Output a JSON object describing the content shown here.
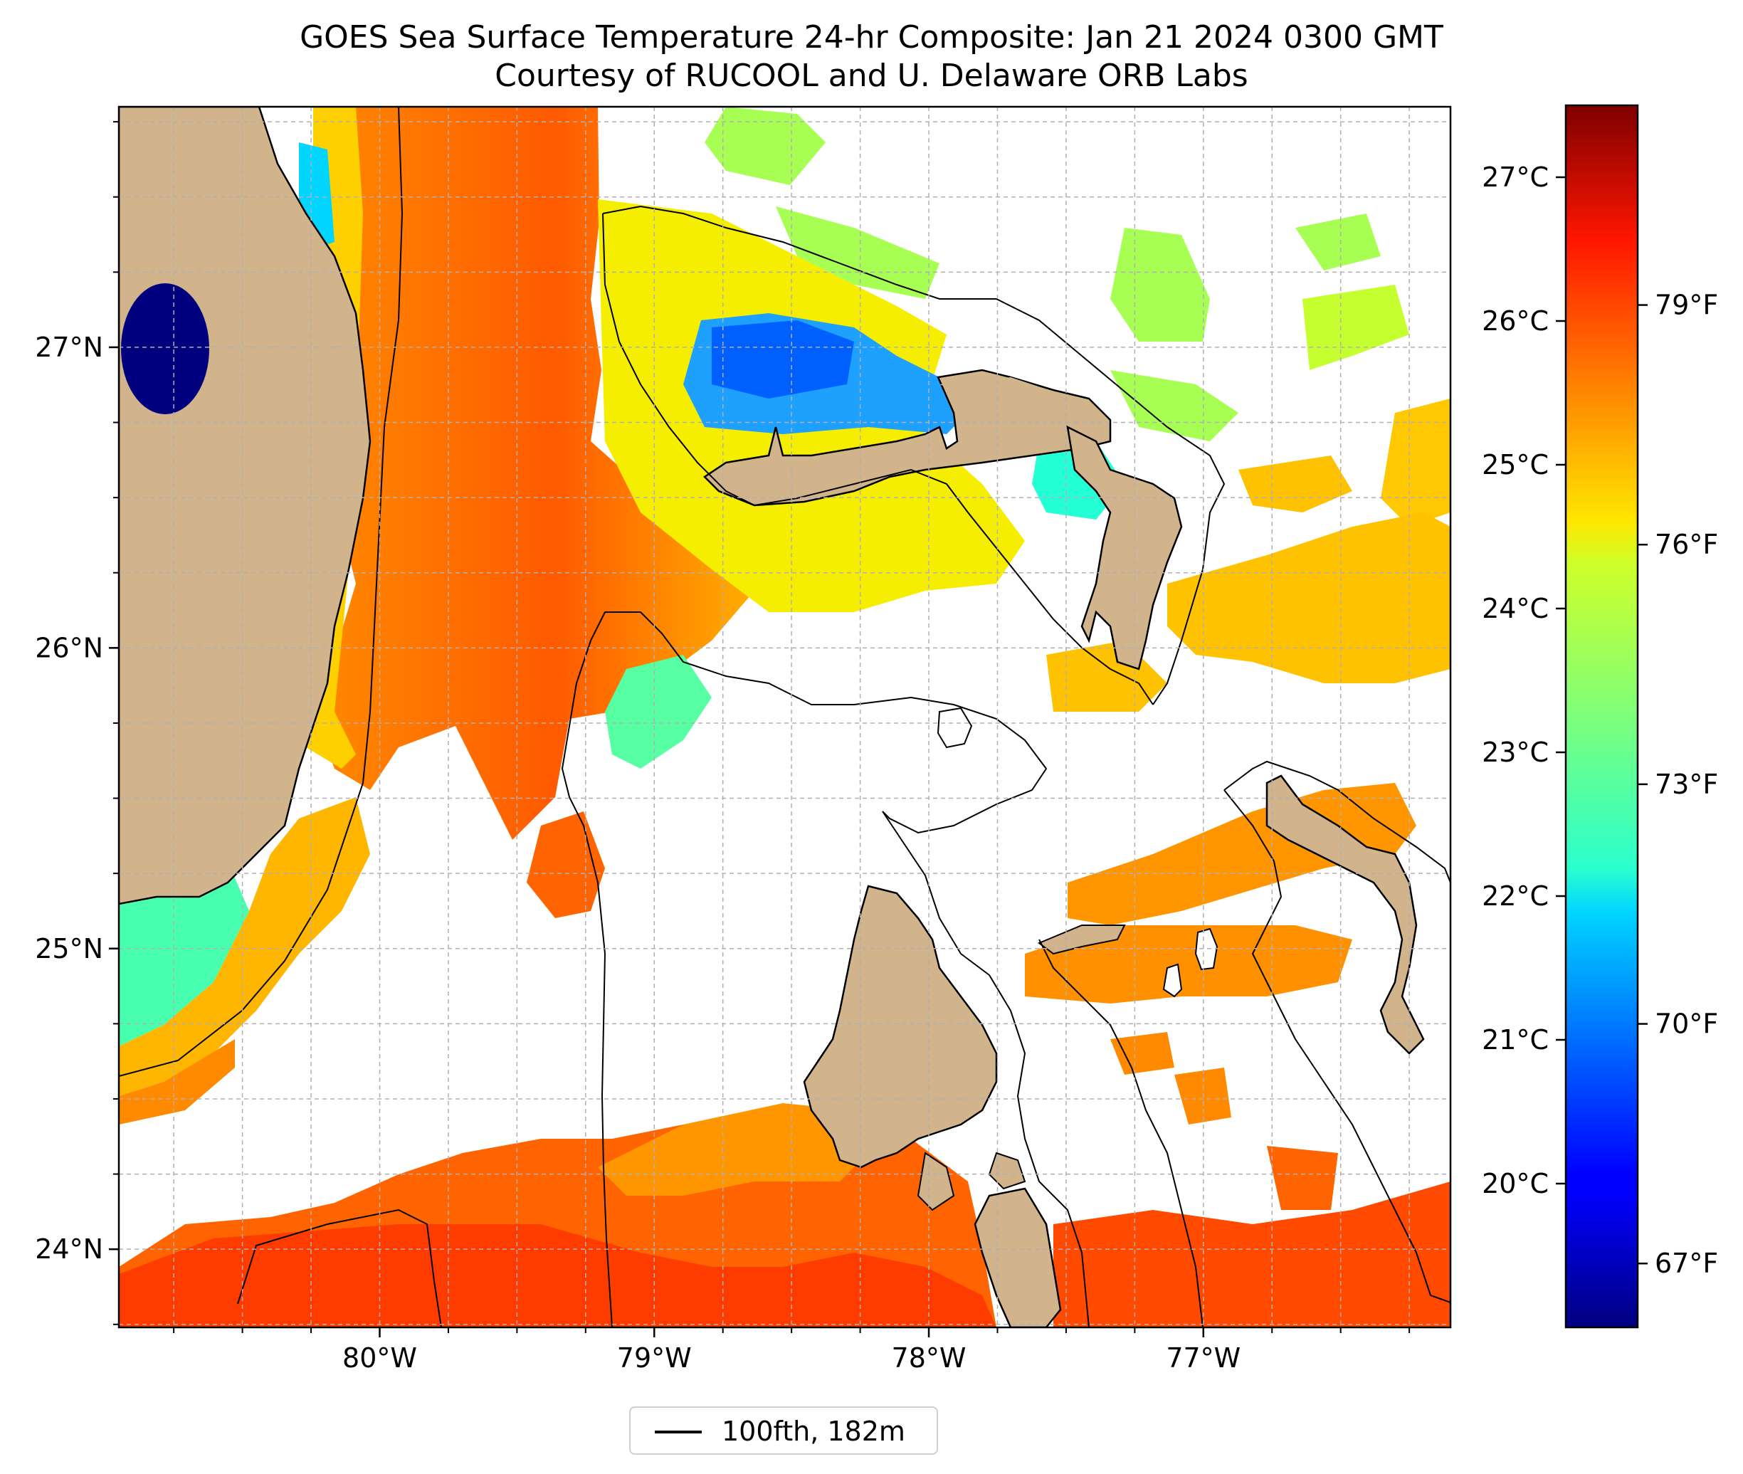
{
  "title": {
    "line1": "GOES Sea Surface Temperature 24-hr Composite: Jan 21 2024 0300 GMT",
    "line2": "Courtesy of RUCOOL and U. Delaware ORB Labs"
  },
  "map": {
    "extent": {
      "lon_min": -80.95,
      "lon_max": -76.1,
      "lat_min": 23.74,
      "lat_max": 27.8
    },
    "lon_ticks": [
      {
        "value": -80,
        "label": "80°W"
      },
      {
        "value": -79,
        "label": "79°W"
      },
      {
        "value": -78,
        "label": "78°W"
      },
      {
        "value": -77,
        "label": "77°W"
      }
    ],
    "lat_ticks": [
      {
        "value": 24,
        "label": "24°N"
      },
      {
        "value": 25,
        "label": "25°N"
      },
      {
        "value": 26,
        "label": "26°N"
      },
      {
        "value": 27,
        "label": "27°N"
      }
    ],
    "gridlines": "on, dashed, every 0.25°",
    "land_color": "#d2b48c",
    "missing_data_color": "#ffffff",
    "colormap": "jet"
  },
  "colorbar": {
    "min_f": 66.2,
    "max_f": 81.5,
    "celsius_ticks": [
      {
        "value": 20,
        "label": "20°C"
      },
      {
        "value": 21,
        "label": "21°C"
      },
      {
        "value": 22,
        "label": "22°C"
      },
      {
        "value": 23,
        "label": "23°C"
      },
      {
        "value": 24,
        "label": "24°C"
      },
      {
        "value": 25,
        "label": "25°C"
      },
      {
        "value": 26,
        "label": "26°C"
      },
      {
        "value": 27,
        "label": "27°C"
      }
    ],
    "fahrenheit_ticks": [
      {
        "value": 67,
        "label": "67°F"
      },
      {
        "value": 70,
        "label": "70°F"
      },
      {
        "value": 73,
        "label": "73°F"
      },
      {
        "value": 76,
        "label": "76°F"
      },
      {
        "value": 79,
        "label": "79°F"
      }
    ]
  },
  "legend": {
    "label": "100fth, 182m"
  }
}
